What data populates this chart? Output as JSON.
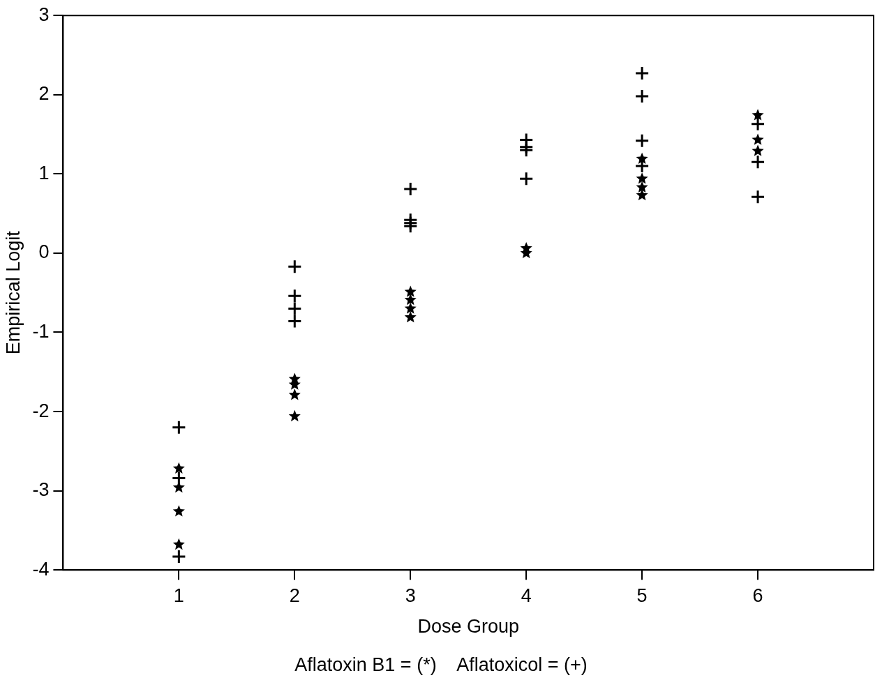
{
  "chart_data": {
    "type": "scatter",
    "xlabel": "Dose Group",
    "ylabel": "Empirical Logit",
    "xlim": [
      0,
      7
    ],
    "xticks": [
      1,
      2,
      3,
      4,
      5,
      6
    ],
    "ylim": [
      -4,
      3
    ],
    "yticks": [
      -4,
      -3,
      -2,
      -1,
      0,
      1,
      2,
      3
    ],
    "grid": false,
    "annotations": [
      "Aflatoxin B1 = (*)    Aflatoxicol = (+)"
    ],
    "series": [
      {
        "color": "#000000",
        "marker": "star",
        "x": [
          1,
          1,
          1,
          1,
          2,
          2,
          2,
          2,
          3,
          3,
          3,
          3,
          4,
          4,
          5,
          5,
          5,
          5,
          6,
          6,
          6
        ],
        "values": [
          -2.72,
          -2.96,
          -3.26,
          -3.68,
          -1.59,
          -1.66,
          -1.79,
          -2.06,
          -0.49,
          -0.59,
          -0.7,
          -0.81,
          0.06,
          0,
          1.19,
          0.94,
          0.83,
          0.73,
          1.74,
          1.43,
          1.29
        ]
      },
      {
        "color": "#000000",
        "marker": "cross",
        "x": [
          1,
          1,
          1,
          2,
          2,
          2,
          2,
          3,
          3,
          3,
          3,
          4,
          4,
          4,
          4,
          5,
          5,
          5,
          5,
          6,
          6,
          6
        ],
        "values": [
          -2.2,
          -2.84,
          -3.83,
          -0.17,
          -0.54,
          -0.7,
          -0.86,
          0.81,
          0.42,
          0.38,
          0.34,
          1.43,
          1.34,
          1.3,
          0.94,
          2.27,
          1.98,
          1.42,
          1.1,
          1.63,
          1.15,
          0.71
        ]
      }
    ]
  }
}
